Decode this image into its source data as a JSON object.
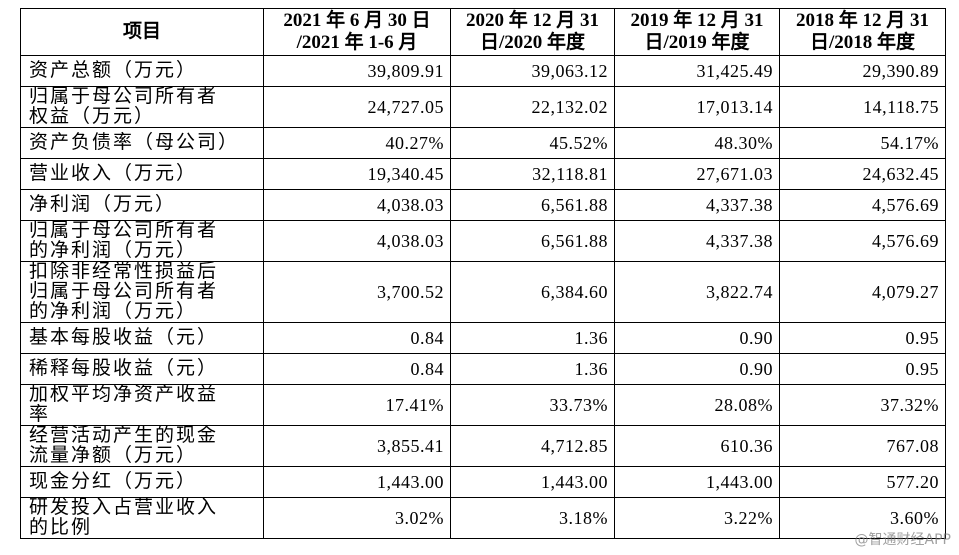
{
  "table": {
    "header": [
      [
        "项目"
      ],
      [
        "2021 年 6 月 30 日",
        "/2021 年 1-6 月"
      ],
      [
        "2020 年 12 月 31",
        "日/2020 年度"
      ],
      [
        "2019 年 12 月 31",
        "日/2019 年度"
      ],
      [
        "2018 年 12 月 31",
        "日/2018 年度"
      ]
    ],
    "rows": [
      {
        "label": "资产总额（万元）",
        "values": [
          "39,809.91",
          "39,063.12",
          "31,425.49",
          "29,390.89"
        ]
      },
      {
        "label": "归属于母公司所有者权益（万元）",
        "values": [
          "24,727.05",
          "22,132.02",
          "17,013.14",
          "14,118.75"
        ]
      },
      {
        "label": "资产负债率（母公司）",
        "values": [
          "40.27%",
          "45.52%",
          "48.30%",
          "54.17%"
        ]
      },
      {
        "label": "营业收入（万元）",
        "values": [
          "19,340.45",
          "32,118.81",
          "27,671.03",
          "24,632.45"
        ]
      },
      {
        "label": "净利润（万元）",
        "values": [
          "4,038.03",
          "6,561.88",
          "4,337.38",
          "4,576.69"
        ]
      },
      {
        "label": "归属于母公司所有者的净利润（万元）",
        "values": [
          "4,038.03",
          "6,561.88",
          "4,337.38",
          "4,576.69"
        ]
      },
      {
        "label": "扣除非经常性损益后归属于母公司所有者的净利润（万元）",
        "values": [
          "3,700.52",
          "6,384.60",
          "3,822.74",
          "4,079.27"
        ]
      },
      {
        "label": "基本每股收益（元）",
        "values": [
          "0.84",
          "1.36",
          "0.90",
          "0.95"
        ]
      },
      {
        "label": "稀释每股收益（元）",
        "values": [
          "0.84",
          "1.36",
          "0.90",
          "0.95"
        ]
      },
      {
        "label": "加权平均净资产收益率",
        "values": [
          "17.41%",
          "33.73%",
          "28.08%",
          "37.32%"
        ]
      },
      {
        "label": "经营活动产生的现金流量净额（万元）",
        "values": [
          "3,855.41",
          "4,712.85",
          "610.36",
          "767.08"
        ]
      },
      {
        "label": "现金分红（万元）",
        "values": [
          "1,443.00",
          "1,443.00",
          "1,443.00",
          "577.20"
        ]
      },
      {
        "label": "研发投入占营业收入的比例",
        "values": [
          "3.02%",
          "3.18%",
          "3.22%",
          "3.60%"
        ]
      }
    ]
  },
  "watermark": "@智通财经APP"
}
